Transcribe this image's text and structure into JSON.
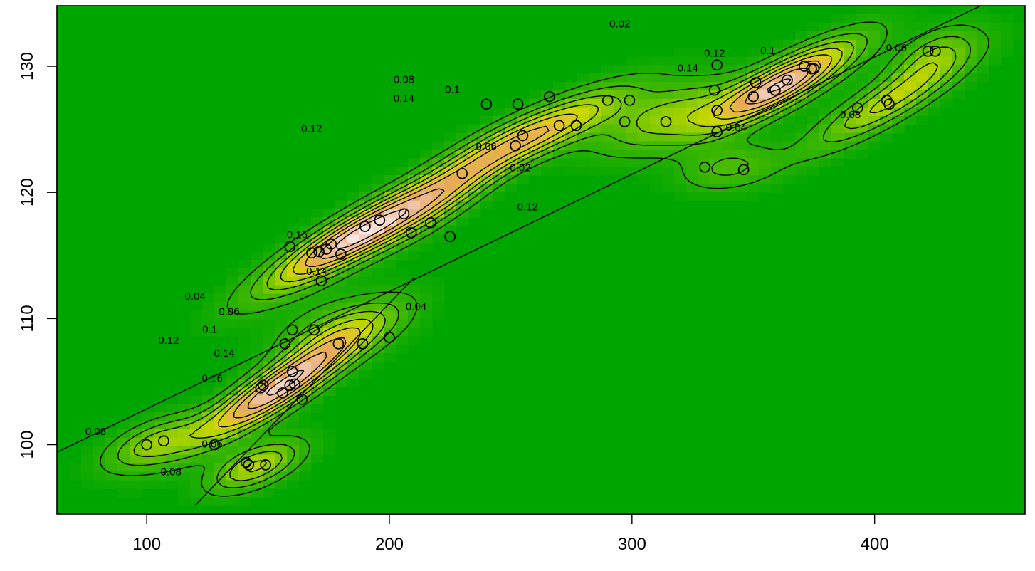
{
  "chart_data": {
    "type": "contour",
    "title": "",
    "xlabel": "",
    "ylabel": "",
    "xlim": [
      63,
      462
    ],
    "ylim": [
      94.5,
      134.8
    ],
    "x_ticks": [
      100,
      200,
      300,
      400
    ],
    "y_ticks": [
      100,
      110,
      120,
      130
    ],
    "x_tick_labels": [
      "100",
      "200",
      "300",
      "400"
    ],
    "y_tick_labels": [
      "100",
      "110",
      "120",
      "130"
    ],
    "grid": false,
    "legend": "none",
    "colors": {
      "background": "#00a600",
      "low": "#33b800",
      "mid": "#c6d600",
      "high": "#e6a64d",
      "peak": "#f2dcd8",
      "contour": "#000000",
      "point_stroke": "#000000"
    },
    "peaks": [
      {
        "x": 187,
        "y": 116.6,
        "sx": 26,
        "sy": 3.0,
        "rho": 0.9,
        "h": 0.17
      },
      {
        "x": 155,
        "y": 104.6,
        "sx": 23,
        "sy": 3.0,
        "rho": 0.9,
        "h": 0.165
      },
      {
        "x": 362,
        "y": 128.6,
        "sx": 21,
        "sy": 2.4,
        "rho": 0.85,
        "h": 0.16
      },
      {
        "x": 262,
        "y": 124.8,
        "sx": 25,
        "sy": 2.4,
        "rho": 0.85,
        "h": 0.115
      },
      {
        "x": 406,
        "y": 127.2,
        "sx": 22,
        "sy": 2.6,
        "rho": 0.88,
        "h": 0.085
      },
      {
        "x": 145,
        "y": 98.3,
        "sx": 13,
        "sy": 1.4,
        "rho": 0.6,
        "h": 0.085
      },
      {
        "x": 103,
        "y": 100.1,
        "sx": 14,
        "sy": 1.5,
        "rho": 0.6,
        "h": 0.07
      },
      {
        "x": 315,
        "y": 126.0,
        "sx": 20,
        "sy": 2.0,
        "rho": 0.6,
        "h": 0.07
      },
      {
        "x": 225,
        "y": 120.0,
        "sx": 18,
        "sy": 2.6,
        "rho": 0.85,
        "h": 0.06
      },
      {
        "x": 180,
        "y": 109.2,
        "sx": 18,
        "sy": 1.8,
        "rho": 0.5,
        "h": 0.055
      },
      {
        "x": 340,
        "y": 122.0,
        "sx": 14,
        "sy": 1.3,
        "rho": 0.3,
        "h": 0.045
      },
      {
        "x": 424,
        "y": 131.0,
        "sx": 12,
        "sy": 1.6,
        "rho": 0.6,
        "h": 0.05
      }
    ],
    "contour_levels": [
      0.02,
      0.04,
      0.06,
      0.08,
      0.1,
      0.12,
      0.14,
      0.16
    ],
    "contour_labels": [
      {
        "text": "0.02",
        "x": 295,
        "y": 133.3
      },
      {
        "text": "0.02",
        "x": 254,
        "y": 121.9
      },
      {
        "text": "0.04",
        "x": 120,
        "y": 111.7
      },
      {
        "text": "0.04",
        "x": 211,
        "y": 110.9
      },
      {
        "text": "0.04",
        "x": 343,
        "y": 125.1
      },
      {
        "text": "0.06",
        "x": 134,
        "y": 110.5
      },
      {
        "text": "0.06",
        "x": 240,
        "y": 123.6
      },
      {
        "text": "0.06",
        "x": 409,
        "y": 131.4
      },
      {
        "text": "0.06",
        "x": 127,
        "y": 100.0
      },
      {
        "text": "0.08",
        "x": 79,
        "y": 101.0
      },
      {
        "text": "0.08",
        "x": 206,
        "y": 128.9
      },
      {
        "text": "0.08",
        "x": 390,
        "y": 126.1
      },
      {
        "text": "0.08",
        "x": 110,
        "y": 97.8
      },
      {
        "text": "0.1",
        "x": 126,
        "y": 109.1
      },
      {
        "text": "0.1",
        "x": 226,
        "y": 128.1
      },
      {
        "text": "0.1",
        "x": 356,
        "y": 131.2
      },
      {
        "text": "0.12",
        "x": 109,
        "y": 108.2
      },
      {
        "text": "0.12",
        "x": 257,
        "y": 118.8
      },
      {
        "text": "0.12",
        "x": 168,
        "y": 125.0
      },
      {
        "text": "0.12",
        "x": 334,
        "y": 131.0
      },
      {
        "text": "0.14",
        "x": 132,
        "y": 107.2
      },
      {
        "text": "0.14",
        "x": 170,
        "y": 113.7
      },
      {
        "text": "0.14",
        "x": 206,
        "y": 127.4
      },
      {
        "text": "0.14",
        "x": 323,
        "y": 129.8
      },
      {
        "text": "0.16",
        "x": 127,
        "y": 105.2
      },
      {
        "text": "0.16",
        "x": 162,
        "y": 116.6
      }
    ],
    "lines": [
      {
        "x1": 63,
        "y1": 99.4,
        "x2": 462,
        "y2": 136.5
      },
      {
        "x1": 120,
        "y1": 95.2,
        "x2": 210,
        "y2": 113.2
      }
    ],
    "points": [
      {
        "x": 100,
        "y": 100.0
      },
      {
        "x": 107,
        "y": 100.3
      },
      {
        "x": 128,
        "y": 100.0
      },
      {
        "x": 141,
        "y": 98.6
      },
      {
        "x": 142,
        "y": 98.4
      },
      {
        "x": 149,
        "y": 98.4
      },
      {
        "x": 147,
        "y": 104.5
      },
      {
        "x": 148,
        "y": 104.7
      },
      {
        "x": 156,
        "y": 104.1
      },
      {
        "x": 159,
        "y": 104.7
      },
      {
        "x": 160,
        "y": 105.8
      },
      {
        "x": 161,
        "y": 104.8
      },
      {
        "x": 164,
        "y": 103.6
      },
      {
        "x": 157,
        "y": 108.0
      },
      {
        "x": 160,
        "y": 109.1
      },
      {
        "x": 169,
        "y": 109.1
      },
      {
        "x": 179,
        "y": 108.0
      },
      {
        "x": 189,
        "y": 108.0
      },
      {
        "x": 200,
        "y": 108.5
      },
      {
        "x": 172,
        "y": 113.0
      },
      {
        "x": 159,
        "y": 115.7
      },
      {
        "x": 168,
        "y": 115.2
      },
      {
        "x": 171,
        "y": 115.3
      },
      {
        "x": 174,
        "y": 115.5
      },
      {
        "x": 176,
        "y": 115.9
      },
      {
        "x": 180,
        "y": 115.1
      },
      {
        "x": 190,
        "y": 117.3
      },
      {
        "x": 196,
        "y": 117.8
      },
      {
        "x": 206,
        "y": 118.3
      },
      {
        "x": 209,
        "y": 116.8
      },
      {
        "x": 217,
        "y": 117.6
      },
      {
        "x": 225,
        "y": 116.5
      },
      {
        "x": 230,
        "y": 121.5
      },
      {
        "x": 240,
        "y": 127.0
      },
      {
        "x": 253,
        "y": 127.0
      },
      {
        "x": 266,
        "y": 127.6
      },
      {
        "x": 252,
        "y": 123.7
      },
      {
        "x": 255,
        "y": 124.5
      },
      {
        "x": 270,
        "y": 125.3
      },
      {
        "x": 277,
        "y": 125.3
      },
      {
        "x": 290,
        "y": 127.3
      },
      {
        "x": 297,
        "y": 125.6
      },
      {
        "x": 299,
        "y": 127.3
      },
      {
        "x": 314,
        "y": 125.6
      },
      {
        "x": 330,
        "y": 122.0
      },
      {
        "x": 346,
        "y": 121.8
      },
      {
        "x": 335,
        "y": 124.8
      },
      {
        "x": 335,
        "y": 126.5
      },
      {
        "x": 334,
        "y": 128.1
      },
      {
        "x": 335,
        "y": 130.1
      },
      {
        "x": 350,
        "y": 127.6
      },
      {
        "x": 351,
        "y": 128.7
      },
      {
        "x": 359,
        "y": 128.1
      },
      {
        "x": 364,
        "y": 128.9
      },
      {
        "x": 371,
        "y": 130.0
      },
      {
        "x": 374,
        "y": 129.8
      },
      {
        "x": 375,
        "y": 129.8
      },
      {
        "x": 393,
        "y": 126.7
      },
      {
        "x": 405,
        "y": 127.3
      },
      {
        "x": 406,
        "y": 127.0
      },
      {
        "x": 422,
        "y": 131.2
      },
      {
        "x": 425,
        "y": 131.2
      }
    ]
  }
}
